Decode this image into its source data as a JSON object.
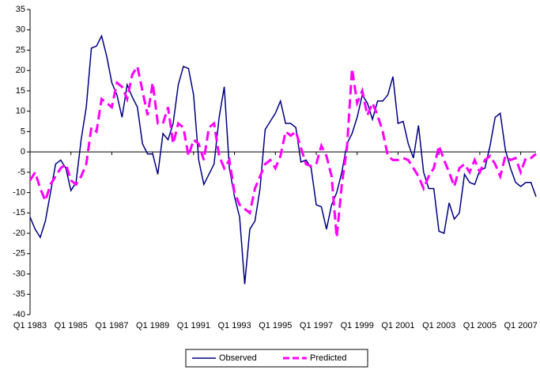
{
  "chart_data": {
    "type": "line",
    "categories": [
      "Q1 1983",
      null,
      null,
      null,
      null,
      null,
      null,
      null,
      "Q1 1985",
      null,
      null,
      null,
      null,
      null,
      null,
      null,
      "Q1 1987",
      null,
      null,
      null,
      null,
      null,
      null,
      null,
      "Q1 1989",
      null,
      null,
      null,
      null,
      null,
      null,
      null,
      "Q1 1991",
      null,
      null,
      null,
      null,
      null,
      null,
      null,
      "Q1 1993",
      null,
      null,
      null,
      null,
      null,
      null,
      null,
      "Q1 1995",
      null,
      null,
      null,
      null,
      null,
      null,
      null,
      "Q1 1997",
      null,
      null,
      null,
      null,
      null,
      null,
      null,
      "Q1 1999",
      null,
      null,
      null,
      null,
      null,
      null,
      null,
      "Q1 2001",
      null,
      null,
      null,
      null,
      null,
      null,
      null,
      "Q1 2003",
      null,
      null,
      null,
      null,
      null,
      null,
      null,
      "Q1 2005",
      null,
      null,
      null,
      null,
      null,
      null,
      null,
      "Q1 2007",
      null,
      null,
      null
    ],
    "series": [
      {
        "name": "Observed",
        "color": "#000080",
        "dashed": false,
        "values": [
          -16,
          -19,
          -21,
          -17,
          -10,
          -3,
          -2,
          -4,
          -9.5,
          -7.5,
          3,
          11,
          25.5,
          26,
          28.5,
          23.5,
          17,
          14,
          8.5,
          16.5,
          13.5,
          11,
          2,
          -0.5,
          -0.5,
          -5.5,
          4.5,
          3,
          7,
          16.5,
          21,
          20.5,
          14,
          -2,
          -8,
          -5.5,
          -3,
          8.5,
          16,
          -4,
          -11,
          -16,
          -32.5,
          -19,
          -17,
          -9,
          5.5,
          7.5,
          9.5,
          12.5,
          7,
          7,
          6,
          -2.5,
          -2,
          -4,
          -13,
          -13.5,
          -19,
          -13,
          -10,
          -5,
          2,
          4.5,
          8.5,
          14,
          12,
          8,
          12.5,
          12.5,
          14,
          18.5,
          7,
          7.5,
          2,
          -1.5,
          6.5,
          -5,
          -9,
          -9,
          -19.5,
          -20,
          -12.5,
          -16.5,
          -15,
          -5.5,
          -7.5,
          -8,
          -4.5,
          -4,
          1.5,
          8.5,
          9.5,
          0.5,
          -4,
          -7.5,
          -8.5,
          -7.5,
          -7.5,
          -11
        ]
      },
      {
        "name": "Predicted",
        "color": "#ff00ff",
        "dashed": true,
        "values": [
          -7,
          -5,
          -9,
          -12,
          -8,
          -6,
          -4,
          -3,
          -7,
          -8,
          -6,
          -3,
          6,
          5,
          13,
          12,
          11,
          17,
          16,
          13,
          19,
          21,
          15,
          9,
          17,
          7,
          7,
          11,
          2,
          7,
          6,
          -1,
          3,
          2,
          -2,
          6,
          7,
          -1,
          -4,
          -2,
          -10,
          -13,
          -14,
          -15,
          -9,
          -6,
          -3,
          -2,
          -4,
          -1,
          5,
          4,
          5,
          1,
          -3,
          -3.5,
          -3,
          1.5,
          -1,
          -6,
          -21,
          -8,
          1,
          20.5,
          12,
          15,
          9,
          12,
          9,
          5,
          -1,
          -2,
          -2,
          -1.5,
          -2,
          -4,
          -6,
          -9,
          -6,
          -4,
          1.5,
          -2,
          -5,
          -8.5,
          -4,
          -3,
          -5,
          -2,
          -5,
          -2,
          -1,
          -3,
          -6,
          -1,
          -2,
          -1.5,
          -5,
          -1.5,
          -1.5,
          -0.5
        ]
      }
    ],
    "ylim": [
      -40,
      35
    ],
    "yticks": [
      -40,
      -35,
      -30,
      -25,
      -20,
      -15,
      -10,
      -5,
      0,
      5,
      10,
      15,
      20,
      25,
      30,
      35
    ],
    "grid": false,
    "legend": "bottom"
  }
}
